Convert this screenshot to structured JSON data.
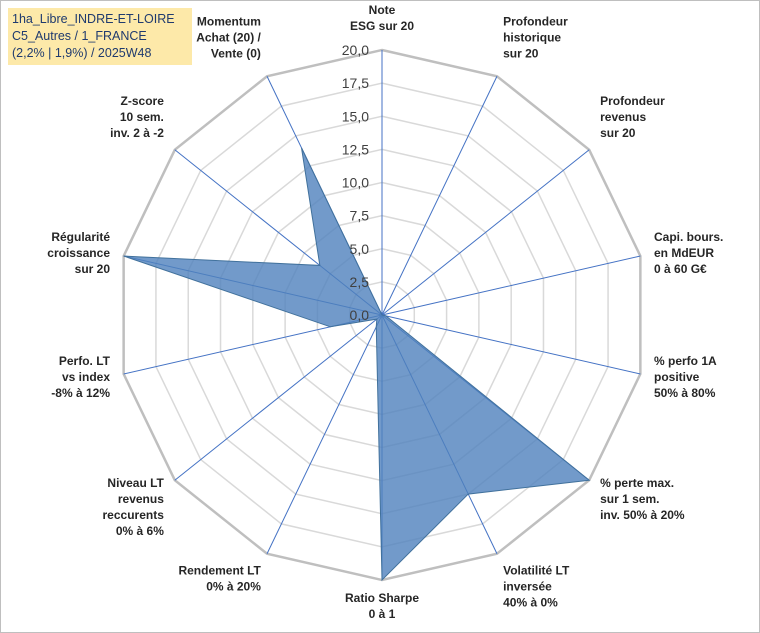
{
  "title_box": {
    "line1": "1ha_Libre_INDRE-ET-LOIRE",
    "line2": "C5_Autres / 1_FRANCE",
    "line3": "(2,2% | 1,9%) / 2025W48"
  },
  "chart_data": {
    "type": "radar",
    "title": "1ha_Libre_INDRE-ET-LOIRE C5_Autres / 1_FRANCE (2,2% | 1,9%) / 2025W48",
    "rlim": [
      0,
      20
    ],
    "tick_labels": [
      "0,0",
      "2,5",
      "5,0",
      "7,5",
      "10,0",
      "12,5",
      "15,0",
      "17,5",
      "20,0"
    ],
    "grid": true,
    "legend": "none",
    "categories": [
      [
        "Note",
        "ESG sur 20"
      ],
      [
        "Profondeur",
        "historique",
        "sur 20"
      ],
      [
        "Profondeur",
        "revenus",
        "sur 20"
      ],
      [
        "Capi. bours.",
        "en MdEUR",
        "0 à 60 G€"
      ],
      [
        "% perfo 1A",
        "positive",
        "50% à 80%"
      ],
      [
        "% perte max.",
        "sur 1 sem.",
        "inv. 50% à 20%"
      ],
      [
        "Volatilité LT",
        "inversée",
        "40% à 0%"
      ],
      [
        "Ratio Sharpe",
        "0 à 1"
      ],
      [
        "Rendement LT",
        "0% à 20%"
      ],
      [
        "Niveau LT",
        "revenus",
        "reccurents",
        "0% à 6%"
      ],
      [
        "Perfo. LT",
        "vs index",
        "-8% à 12%"
      ],
      [
        "Régularité",
        "croissance",
        "sur 20"
      ],
      [
        "Z-score",
        "10 sem.",
        "inv. 2 à -2"
      ],
      [
        "Momentum",
        "Achat (20) /",
        "Vente (0)"
      ]
    ],
    "series": [
      {
        "values": [
          0,
          0,
          0,
          0,
          0.3,
          20,
          15,
          20,
          1,
          0.5,
          4,
          20,
          6,
          14
        ],
        "color": "#4f81bd"
      }
    ]
  }
}
